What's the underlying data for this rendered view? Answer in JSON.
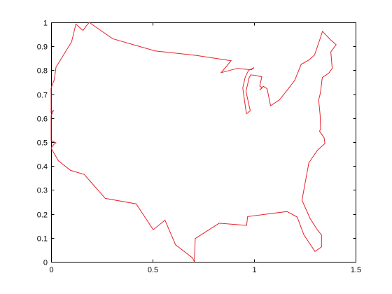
{
  "chart_data": {
    "type": "line",
    "title": "",
    "xlabel": "",
    "ylabel": "",
    "xlim": [
      0,
      1.5
    ],
    "ylim": [
      0,
      1
    ],
    "grid": false,
    "xticks": [
      0,
      0.5,
      1,
      1.5
    ],
    "xtick_labels": [
      "0",
      "0.5",
      "1",
      "1.5"
    ],
    "yticks": [
      0,
      0.1,
      0.2,
      0.3,
      0.4,
      0.5,
      0.6,
      0.7,
      0.8,
      0.9,
      1
    ],
    "ytick_labels": [
      "0",
      "0.1",
      "0.2",
      "0.3",
      "0.4",
      "0.5",
      "0.6",
      "0.7",
      "0.8",
      "0.9",
      "1"
    ],
    "series": [
      {
        "color": "#e8202a",
        "x": [
          0.0,
          0.016,
          0.024,
          0.101,
          0.122,
          0.152,
          0.158,
          0.173,
          0.188,
          0.303,
          0.512,
          0.717,
          0.887,
          0.838,
          0.917,
          0.986,
          1.0,
          0.972,
          0.956,
          0.944,
          0.962,
          0.981,
          0.96,
          0.976,
          0.984,
          1.003,
          1.038,
          1.028,
          1.04,
          1.027,
          1.045,
          1.064,
          1.081,
          1.124,
          1.163,
          1.2,
          1.232,
          1.27,
          1.298,
          1.326,
          1.337,
          1.378,
          1.404,
          1.378,
          1.385,
          1.367,
          1.336,
          1.327,
          1.318,
          1.325,
          1.328,
          1.322,
          1.345,
          1.349,
          1.312,
          1.27,
          1.251,
          1.236,
          1.276,
          1.312,
          1.332,
          1.332,
          1.3,
          1.245,
          1.212,
          1.162,
          0.968,
          0.963,
          0.828,
          0.71,
          0.706,
          0.697,
          0.613,
          0.561,
          0.503,
          0.419,
          0.267,
          0.163,
          0.096,
          0.036,
          0.0,
          0.016,
          0.024,
          0.0,
          0.0,
          0.012,
          0.0,
          0.0
        ],
        "y": [
          0.726,
          0.761,
          0.813,
          0.919,
          0.993,
          0.97,
          0.967,
          0.985,
          1.0,
          0.932,
          0.881,
          0.862,
          0.84,
          0.79,
          0.808,
          0.802,
          0.811,
          0.799,
          0.77,
          0.726,
          0.618,
          0.631,
          0.712,
          0.77,
          0.781,
          0.779,
          0.773,
          0.734,
          0.727,
          0.717,
          0.733,
          0.723,
          0.652,
          0.676,
          0.717,
          0.758,
          0.825,
          0.843,
          0.864,
          0.934,
          0.963,
          0.926,
          0.907,
          0.877,
          0.808,
          0.787,
          0.77,
          0.706,
          0.676,
          0.614,
          0.554,
          0.546,
          0.518,
          0.494,
          0.466,
          0.414,
          0.328,
          0.257,
          0.181,
          0.133,
          0.112,
          0.062,
          0.043,
          0.113,
          0.187,
          0.21,
          0.189,
          0.152,
          0.161,
          0.097,
          0.0,
          0.016,
          0.071,
          0.174,
          0.134,
          0.242,
          0.265,
          0.365,
          0.382,
          0.422,
          0.475,
          0.493,
          0.497,
          0.507,
          0.61,
          0.633,
          0.625,
          0.726
        ]
      }
    ]
  }
}
